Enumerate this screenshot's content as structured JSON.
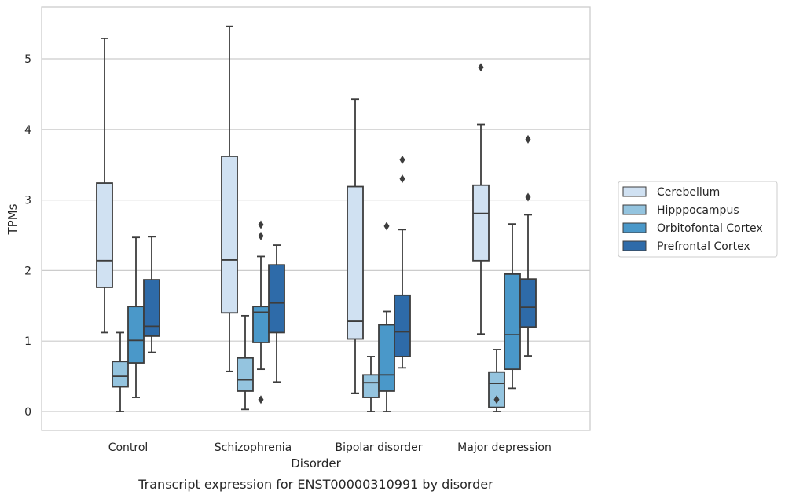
{
  "chart_data": {
    "type": "box",
    "title": "",
    "caption": "Transcript expression for ENST00000310991 by disorder",
    "xlabel": "Disorder",
    "ylabel": "TPMs",
    "ylim": [
      -0.27,
      5.74
    ],
    "yticks": [
      0,
      1,
      2,
      3,
      4,
      5
    ],
    "grid": "horizontal",
    "legend_position": "right",
    "categories": [
      "Control",
      "Schizophrenia",
      "Bipolar disorder",
      "Major depression"
    ],
    "series": [
      {
        "name": "Cerebellum",
        "color": "#d0e1f2",
        "boxes": [
          {
            "whisker_low": 1.12,
            "q1": 1.76,
            "median": 2.14,
            "q3": 3.24,
            "whisker_high": 5.29,
            "outliers": []
          },
          {
            "whisker_low": 0.57,
            "q1": 1.4,
            "median": 2.15,
            "q3": 3.62,
            "whisker_high": 5.46,
            "outliers": []
          },
          {
            "whisker_low": 0.26,
            "q1": 1.03,
            "median": 1.28,
            "q3": 3.19,
            "whisker_high": 4.43,
            "outliers": []
          },
          {
            "whisker_low": 1.1,
            "q1": 2.14,
            "median": 2.81,
            "q3": 3.21,
            "whisker_high": 4.07,
            "outliers": [
              4.88
            ]
          }
        ]
      },
      {
        "name": "Hipppocampus",
        "color": "#94c4df",
        "boxes": [
          {
            "whisker_low": 0.0,
            "q1": 0.35,
            "median": 0.5,
            "q3": 0.71,
            "whisker_high": 1.12,
            "outliers": []
          },
          {
            "whisker_low": 0.03,
            "q1": 0.29,
            "median": 0.45,
            "q3": 0.76,
            "whisker_high": 1.36,
            "outliers": []
          },
          {
            "whisker_low": 0.0,
            "q1": 0.2,
            "median": 0.41,
            "q3": 0.52,
            "whisker_high": 0.78,
            "outliers": []
          },
          {
            "whisker_low": 0.0,
            "q1": 0.06,
            "median": 0.4,
            "q3": 0.56,
            "whisker_high": 0.88,
            "outliers": [
              0.17
            ]
          }
        ]
      },
      {
        "name": "Orbitofontal Cortex",
        "color": "#4a98c9",
        "boxes": [
          {
            "whisker_low": 0.2,
            "q1": 0.69,
            "median": 1.01,
            "q3": 1.49,
            "whisker_high": 2.47,
            "outliers": []
          },
          {
            "whisker_low": 0.6,
            "q1": 0.98,
            "median": 1.41,
            "q3": 1.49,
            "whisker_high": 2.2,
            "outliers": [
              2.49,
              2.65,
              0.17
            ]
          },
          {
            "whisker_low": 0.0,
            "q1": 0.29,
            "median": 0.52,
            "q3": 1.23,
            "whisker_high": 1.42,
            "outliers": [
              2.63
            ]
          },
          {
            "whisker_low": 0.33,
            "q1": 0.6,
            "median": 1.09,
            "q3": 1.95,
            "whisker_high": 2.66,
            "outliers": []
          }
        ]
      },
      {
        "name": "Prefrontal Cortex",
        "color": "#2e6ba9",
        "boxes": [
          {
            "whisker_low": 0.84,
            "q1": 1.07,
            "median": 1.21,
            "q3": 1.87,
            "whisker_high": 2.48,
            "outliers": []
          },
          {
            "whisker_low": 0.42,
            "q1": 1.12,
            "median": 1.54,
            "q3": 2.08,
            "whisker_high": 2.36,
            "outliers": []
          },
          {
            "whisker_low": 0.62,
            "q1": 0.78,
            "median": 1.13,
            "q3": 1.65,
            "whisker_high": 2.58,
            "outliers": [
              3.3,
              3.57
            ]
          },
          {
            "whisker_low": 0.79,
            "q1": 1.2,
            "median": 1.48,
            "q3": 1.88,
            "whisker_high": 2.79,
            "outliers": [
              3.04,
              3.86
            ]
          }
        ]
      }
    ]
  }
}
